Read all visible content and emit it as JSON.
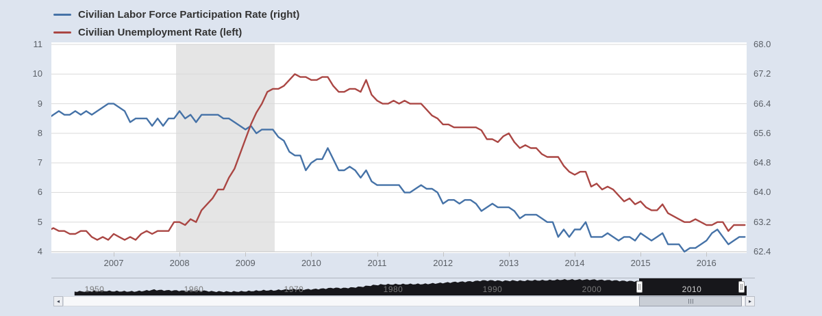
{
  "colors": {
    "background": "#dde4ef",
    "plot_background": "#ffffff",
    "gridline": "#d9d9d9",
    "axis_line": "#c3c3c3",
    "blue": "#4572a7",
    "red": "#aa4643",
    "recession_band": "#e5e5e5",
    "navigator_fill": "#17171b",
    "navigator_label": "#787878",
    "navigator_label_selected": "#d2d2d2"
  },
  "icons": {
    "scrollbar_left_arrow": "◂",
    "scrollbar_right_arrow": "▸",
    "handle_grip": "||"
  },
  "chart_data": {
    "type": "line",
    "title": "",
    "frequency": "monthly",
    "x_start_year": 2006.0,
    "x_end_year": 2016.583,
    "x_ticks": [
      "2007",
      "2008",
      "2009",
      "2010",
      "2011",
      "2012",
      "2013",
      "2014",
      "2015",
      "2016"
    ],
    "left_axis": {
      "min": 4,
      "max": 11,
      "ticks": [
        "11",
        "10",
        "9",
        "8",
        "7",
        "6",
        "5",
        "4"
      ]
    },
    "right_axis": {
      "min": 62.4,
      "max": 68.0,
      "ticks": [
        "68.0",
        "67.2",
        "66.4",
        "65.6",
        "64.8",
        "64.0",
        "63.2",
        "62.4"
      ]
    },
    "recession_band": {
      "start_year": 2007.95,
      "end_year": 2009.45
    },
    "series": [
      {
        "name": "Civilian Labor Force Participation Rate (right)",
        "axis": "right",
        "color": "#4572a7",
        "values": [
          66.0,
          66.1,
          66.2,
          66.1,
          66.1,
          66.2,
          66.1,
          66.2,
          66.1,
          66.2,
          66.3,
          66.4,
          66.4,
          66.3,
          66.2,
          65.9,
          66.0,
          66.0,
          66.0,
          65.8,
          66.0,
          65.8,
          66.0,
          66.0,
          66.2,
          66.0,
          66.1,
          65.9,
          66.1,
          66.1,
          66.1,
          66.1,
          66.0,
          66.0,
          65.9,
          65.8,
          65.7,
          65.8,
          65.6,
          65.7,
          65.7,
          65.7,
          65.5,
          65.4,
          65.1,
          65.0,
          65.0,
          64.6,
          64.8,
          64.9,
          64.9,
          65.2,
          64.9,
          64.6,
          64.6,
          64.7,
          64.6,
          64.4,
          64.6,
          64.3,
          64.2,
          64.2,
          64.2,
          64.2,
          64.2,
          64.0,
          64.0,
          64.1,
          64.2,
          64.1,
          64.1,
          64.0,
          63.7,
          63.8,
          63.8,
          63.7,
          63.8,
          63.8,
          63.7,
          63.5,
          63.6,
          63.7,
          63.6,
          63.6,
          63.6,
          63.5,
          63.3,
          63.4,
          63.4,
          63.4,
          63.3,
          63.2,
          63.2,
          62.8,
          63.0,
          62.8,
          63.0,
          63.0,
          63.2,
          62.8,
          62.8,
          62.8,
          62.9,
          62.8,
          62.7,
          62.8,
          62.8,
          62.7,
          62.9,
          62.8,
          62.7,
          62.8,
          62.9,
          62.6,
          62.6,
          62.6,
          62.4,
          62.5,
          62.5,
          62.6,
          62.7,
          62.9,
          63.0,
          62.8,
          62.6,
          62.7,
          62.8,
          62.8
        ]
      },
      {
        "name": "Civilian Unemployment Rate (left)",
        "axis": "left",
        "color": "#aa4643",
        "values": [
          4.7,
          4.8,
          4.7,
          4.7,
          4.6,
          4.6,
          4.7,
          4.7,
          4.5,
          4.4,
          4.5,
          4.4,
          4.6,
          4.5,
          4.4,
          4.5,
          4.4,
          4.6,
          4.7,
          4.6,
          4.7,
          4.7,
          4.7,
          5.0,
          5.0,
          4.9,
          5.1,
          5.0,
          5.4,
          5.6,
          5.8,
          6.1,
          6.1,
          6.5,
          6.8,
          7.3,
          7.8,
          8.3,
          8.7,
          9.0,
          9.4,
          9.5,
          9.5,
          9.6,
          9.8,
          10.0,
          9.9,
          9.9,
          9.8,
          9.8,
          9.9,
          9.9,
          9.6,
          9.4,
          9.4,
          9.5,
          9.5,
          9.4,
          9.8,
          9.3,
          9.1,
          9.0,
          9.0,
          9.1,
          9.0,
          9.1,
          9.0,
          9.0,
          9.0,
          8.8,
          8.6,
          8.5,
          8.3,
          8.3,
          8.2,
          8.2,
          8.2,
          8.2,
          8.2,
          8.1,
          7.8,
          7.8,
          7.7,
          7.9,
          8.0,
          7.7,
          7.5,
          7.6,
          7.5,
          7.5,
          7.3,
          7.2,
          7.2,
          7.2,
          6.9,
          6.7,
          6.6,
          6.7,
          6.7,
          6.2,
          6.3,
          6.1,
          6.2,
          6.1,
          5.9,
          5.7,
          5.8,
          5.6,
          5.7,
          5.5,
          5.4,
          5.4,
          5.6,
          5.3,
          5.2,
          5.1,
          5.0,
          5.0,
          5.1,
          5.0,
          4.9,
          4.9,
          5.0,
          5.0,
          4.7,
          4.9,
          4.9,
          4.9
        ]
      }
    ],
    "navigator": {
      "decade_labels": [
        "1950",
        "1960",
        "1970",
        "1980",
        "1990",
        "2000",
        "2010"
      ],
      "start_year": 1948,
      "annual_values": [
        58.8,
        58.9,
        59.2,
        59.2,
        59.0,
        58.9,
        58.8,
        59.3,
        60.0,
        59.6,
        59.5,
        59.3,
        59.4,
        59.3,
        58.8,
        58.7,
        58.7,
        58.9,
        59.2,
        59.6,
        59.6,
        60.1,
        60.4,
        60.2,
        60.4,
        60.8,
        61.3,
        61.2,
        61.6,
        62.3,
        63.2,
        63.7,
        63.8,
        63.9,
        64.0,
        64.0,
        64.4,
        64.8,
        65.3,
        65.6,
        65.9,
        66.5,
        66.5,
        66.2,
        66.4,
        66.3,
        66.6,
        66.6,
        66.8,
        67.1,
        67.1,
        67.1,
        67.1,
        66.8,
        66.6,
        66.2,
        66.0,
        66.0,
        66.2,
        66.0,
        66.0,
        65.4,
        64.7,
        64.1,
        63.7,
        63.2,
        62.9,
        62.7,
        62.8
      ],
      "selection": {
        "start_year": 2006.0,
        "end_year": 2016.583
      }
    }
  }
}
